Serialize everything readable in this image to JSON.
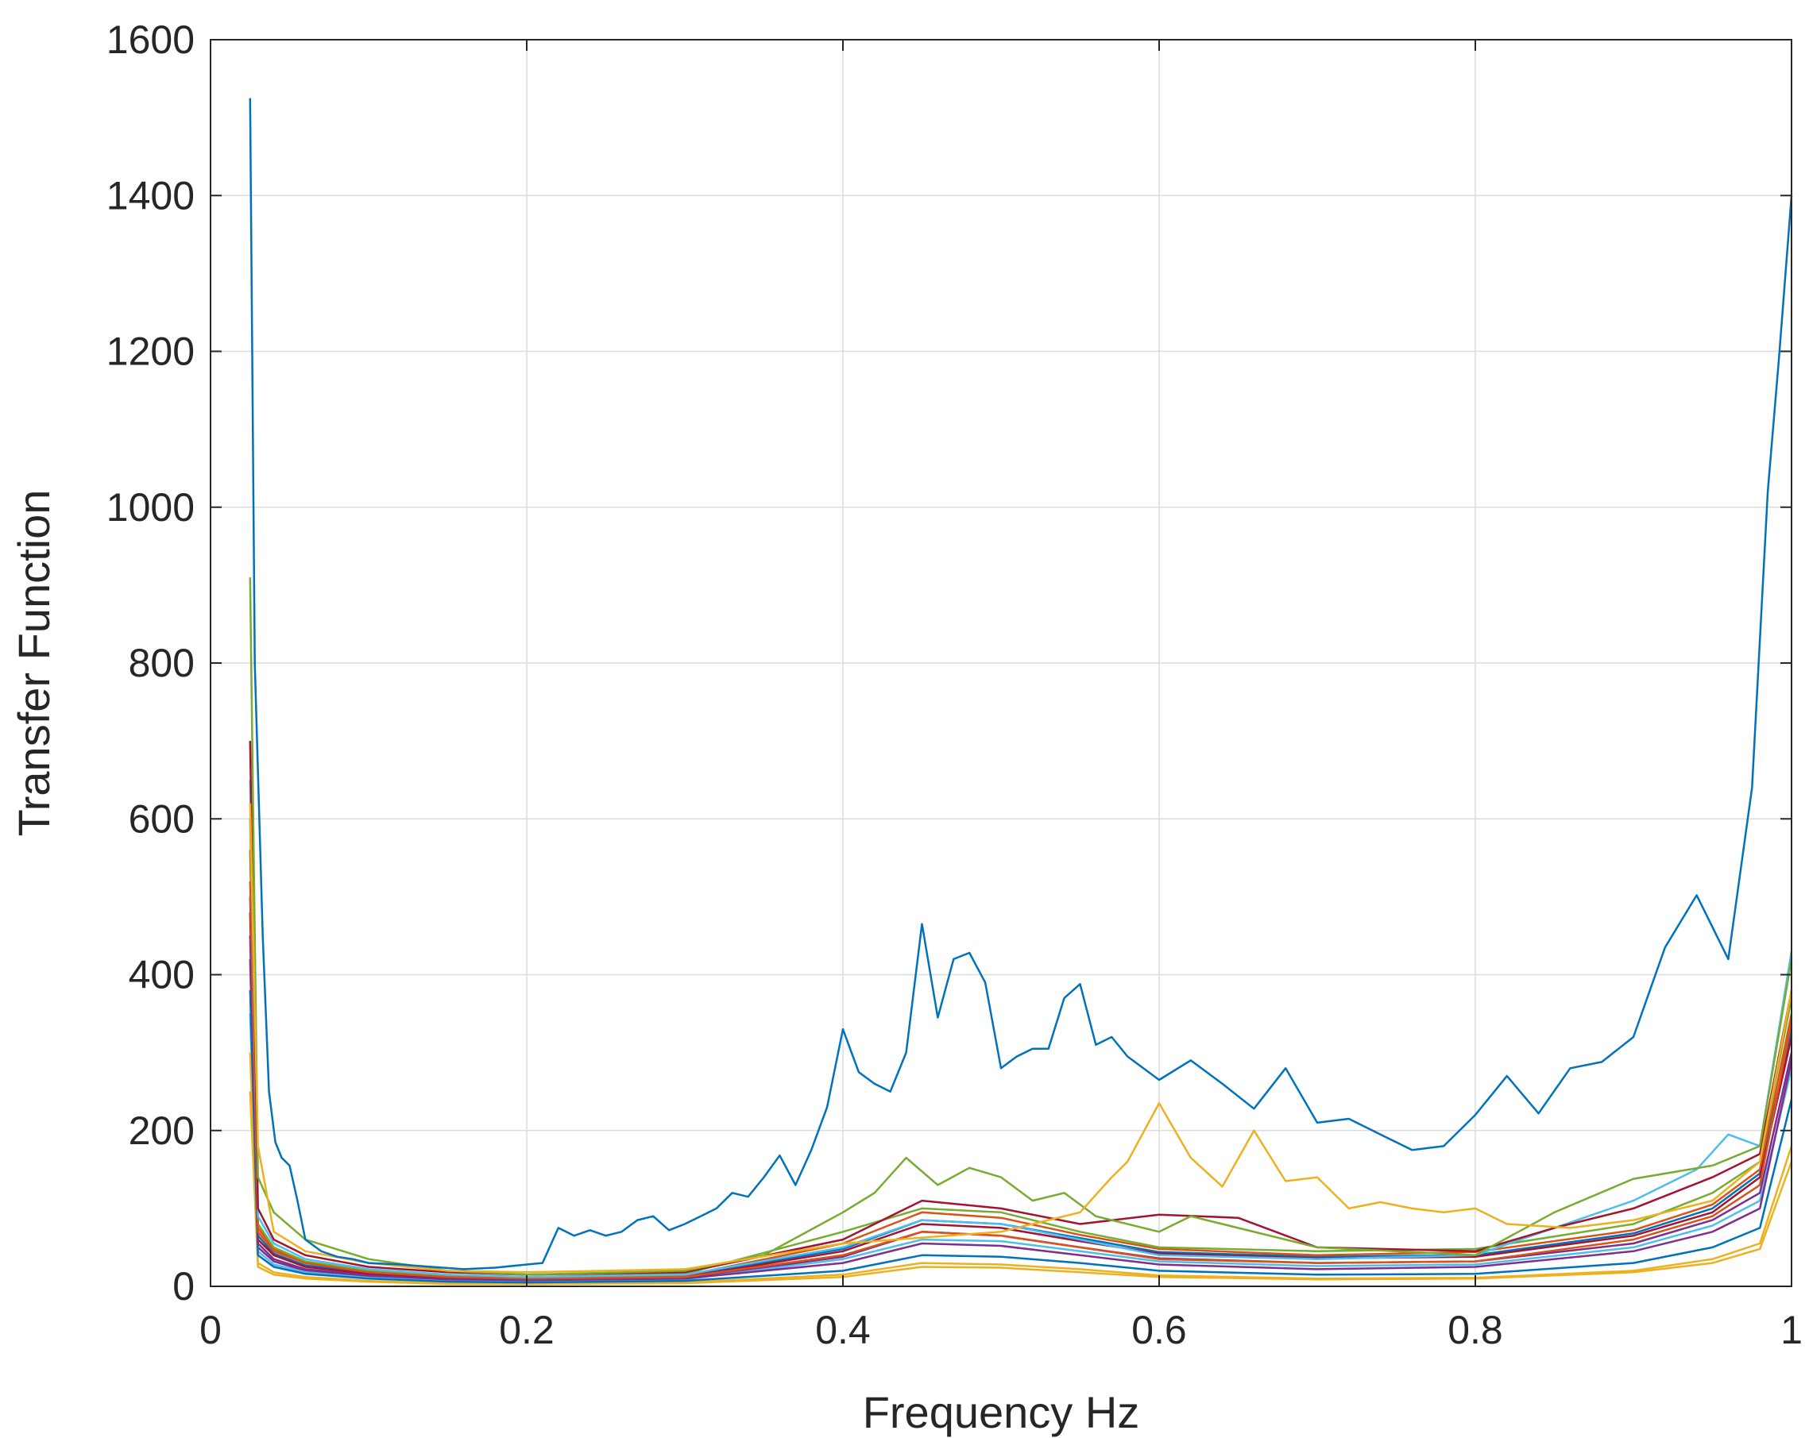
{
  "chart_data": {
    "type": "line",
    "title": "",
    "xlabel": "Frequency Hz",
    "ylabel": "Transfer Function",
    "xlim": [
      0,
      1
    ],
    "ylim": [
      0,
      1600
    ],
    "xticks": [
      0,
      0.2,
      0.4,
      0.6,
      0.8,
      1
    ],
    "xtick_labels": [
      "0",
      "0.2",
      "0.4",
      "0.6",
      "0.8",
      "1"
    ],
    "yticks": [
      0,
      200,
      400,
      600,
      800,
      1000,
      1200,
      1400,
      1600
    ],
    "ytick_labels": [
      "0",
      "200",
      "400",
      "600",
      "800",
      "1000",
      "1200",
      "1400",
      "1600"
    ],
    "grid": true,
    "legend": "none",
    "series": [
      {
        "color": "#0072BD",
        "x": [
          0.025,
          0.028,
          0.033,
          0.037,
          0.041,
          0.045,
          0.05,
          0.055,
          0.06,
          0.07,
          0.08,
          0.09,
          0.1,
          0.12,
          0.14,
          0.16,
          0.18,
          0.2,
          0.21,
          0.22,
          0.23,
          0.24,
          0.25,
          0.26,
          0.27,
          0.28,
          0.29,
          0.3,
          0.31,
          0.32,
          0.33,
          0.34,
          0.35,
          0.36,
          0.37,
          0.38,
          0.39,
          0.4,
          0.41,
          0.42,
          0.43,
          0.44,
          0.45,
          0.46,
          0.47,
          0.48,
          0.49,
          0.5,
          0.51,
          0.52,
          0.53,
          0.54,
          0.55,
          0.56,
          0.57,
          0.58,
          0.59,
          0.6,
          0.62,
          0.64,
          0.66,
          0.68,
          0.7,
          0.72,
          0.74,
          0.76,
          0.78,
          0.8,
          0.82,
          0.84,
          0.86,
          0.88,
          0.9,
          0.92,
          0.94,
          0.96,
          0.975,
          0.985,
          0.992,
          1.0
        ],
        "y": [
          1525,
          800,
          450,
          250,
          185,
          165,
          155,
          110,
          60,
          45,
          38,
          35,
          30,
          28,
          25,
          22,
          24,
          28,
          30,
          75,
          65,
          72,
          65,
          70,
          85,
          90,
          72,
          80,
          90,
          100,
          120,
          115,
          140,
          168,
          130,
          175,
          230,
          330,
          275,
          260,
          250,
          300,
          465,
          345,
          420,
          428,
          390,
          280,
          295,
          305,
          305,
          370,
          388,
          310,
          320,
          295,
          280,
          265,
          290,
          260,
          228,
          280,
          210,
          215,
          195,
          175,
          180,
          220,
          270,
          222,
          280,
          288,
          320,
          435,
          502,
          420,
          640,
          1020,
          1190,
          1400
        ]
      },
      {
        "color": "#EDB120",
        "x": [
          0.025,
          0.03,
          0.04,
          0.06,
          0.1,
          0.15,
          0.2,
          0.3,
          0.4,
          0.5,
          0.55,
          0.57,
          0.58,
          0.6,
          0.62,
          0.64,
          0.66,
          0.68,
          0.7,
          0.72,
          0.74,
          0.76,
          0.78,
          0.8,
          0.82,
          0.86,
          0.9,
          0.95,
          0.98,
          1.0
        ],
        "y": [
          620,
          180,
          70,
          45,
          30,
          20,
          18,
          22,
          55,
          70,
          95,
          140,
          160,
          235,
          165,
          128,
          200,
          135,
          140,
          100,
          108,
          100,
          95,
          100,
          80,
          75,
          85,
          110,
          160,
          380
        ]
      },
      {
        "color": "#77AC30",
        "x": [
          0.025,
          0.03,
          0.04,
          0.06,
          0.1,
          0.15,
          0.2,
          0.3,
          0.35,
          0.4,
          0.42,
          0.44,
          0.46,
          0.48,
          0.5,
          0.52,
          0.54,
          0.56,
          0.6,
          0.62,
          0.7,
          0.8,
          0.85,
          0.9,
          0.95,
          0.98,
          1.0
        ],
        "y": [
          910,
          140,
          95,
          60,
          35,
          20,
          15,
          20,
          40,
          95,
          120,
          165,
          130,
          152,
          140,
          110,
          120,
          90,
          70,
          90,
          50,
          40,
          95,
          138,
          155,
          180,
          420
        ]
      },
      {
        "color": "#A2142F",
        "x": [
          0.025,
          0.03,
          0.04,
          0.06,
          0.1,
          0.15,
          0.2,
          0.3,
          0.4,
          0.45,
          0.5,
          0.55,
          0.6,
          0.65,
          0.7,
          0.8,
          0.85,
          0.9,
          0.95,
          0.98,
          1.0
        ],
        "y": [
          700,
          100,
          60,
          40,
          25,
          18,
          15,
          18,
          60,
          110,
          100,
          80,
          92,
          88,
          50,
          45,
          75,
          100,
          140,
          170,
          380
        ]
      },
      {
        "color": "#4DBEEE",
        "x": [
          0.025,
          0.03,
          0.04,
          0.06,
          0.1,
          0.15,
          0.2,
          0.3,
          0.4,
          0.45,
          0.5,
          0.55,
          0.6,
          0.7,
          0.8,
          0.9,
          0.94,
          0.96,
          0.98,
          1.0
        ],
        "y": [
          650,
          90,
          55,
          35,
          22,
          15,
          12,
          15,
          50,
          85,
          80,
          60,
          40,
          35,
          40,
          110,
          150,
          195,
          180,
          430
        ]
      },
      {
        "color": "#D95319",
        "x": [
          0.025,
          0.03,
          0.04,
          0.06,
          0.1,
          0.15,
          0.2,
          0.3,
          0.4,
          0.45,
          0.5,
          0.55,
          0.6,
          0.7,
          0.8,
          0.9,
          0.95,
          0.98,
          1.0
        ],
        "y": [
          520,
          70,
          45,
          30,
          18,
          12,
          10,
          12,
          40,
          70,
          65,
          50,
          35,
          30,
          32,
          60,
          90,
          130,
          340
        ]
      },
      {
        "color": "#7E2F8E",
        "x": [
          0.025,
          0.03,
          0.04,
          0.06,
          0.1,
          0.15,
          0.2,
          0.3,
          0.4,
          0.45,
          0.5,
          0.55,
          0.6,
          0.7,
          0.8,
          0.9,
          0.95,
          0.98,
          1.0
        ],
        "y": [
          450,
          55,
          35,
          22,
          14,
          9,
          8,
          10,
          30,
          55,
          52,
          40,
          28,
          22,
          25,
          45,
          70,
          100,
          290
        ]
      },
      {
        "color": "#0072BD",
        "x": [
          0.025,
          0.03,
          0.04,
          0.06,
          0.1,
          0.15,
          0.2,
          0.3,
          0.4,
          0.45,
          0.5,
          0.55,
          0.6,
          0.7,
          0.8,
          0.9,
          0.95,
          0.98,
          1.0
        ],
        "y": [
          380,
          40,
          25,
          16,
          10,
          6,
          5,
          7,
          20,
          40,
          38,
          30,
          20,
          15,
          16,
          30,
          50,
          75,
          240
        ]
      },
      {
        "color": "#EDB120",
        "x": [
          0.025,
          0.03,
          0.04,
          0.06,
          0.1,
          0.15,
          0.2,
          0.3,
          0.4,
          0.45,
          0.5,
          0.55,
          0.6,
          0.7,
          0.8,
          0.9,
          0.95,
          0.98,
          1.0
        ],
        "y": [
          300,
          30,
          18,
          12,
          7,
          4,
          3,
          5,
          15,
          30,
          28,
          22,
          14,
          10,
          11,
          20,
          35,
          55,
          180
        ]
      },
      {
        "color": "#77AC30",
        "x": [
          0.025,
          0.03,
          0.04,
          0.06,
          0.1,
          0.15,
          0.2,
          0.3,
          0.4,
          0.45,
          0.5,
          0.55,
          0.6,
          0.7,
          0.8,
          0.9,
          0.95,
          0.98,
          1.0
        ],
        "y": [
          600,
          80,
          50,
          32,
          20,
          14,
          12,
          16,
          70,
          100,
          95,
          70,
          50,
          45,
          48,
          80,
          120,
          160,
          370
        ]
      },
      {
        "color": "#A2142F",
        "x": [
          0.025,
          0.03,
          0.04,
          0.06,
          0.1,
          0.15,
          0.2,
          0.3,
          0.4,
          0.45,
          0.5,
          0.55,
          0.6,
          0.7,
          0.8,
          0.9,
          0.95,
          0.98,
          1.0
        ],
        "y": [
          480,
          60,
          40,
          25,
          16,
          10,
          9,
          12,
          45,
          80,
          75,
          58,
          42,
          36,
          38,
          65,
          95,
          140,
          320
        ]
      },
      {
        "color": "#4DBEEE",
        "x": [
          0.025,
          0.03,
          0.04,
          0.06,
          0.1,
          0.15,
          0.2,
          0.3,
          0.4,
          0.45,
          0.5,
          0.55,
          0.6,
          0.7,
          0.8,
          0.9,
          0.95,
          0.98,
          1.0
        ],
        "y": [
          350,
          45,
          28,
          18,
          11,
          7,
          6,
          9,
          35,
          60,
          58,
          45,
          32,
          26,
          28,
          50,
          78,
          110,
          280
        ]
      },
      {
        "color": "#D95319",
        "x": [
          0.025,
          0.03,
          0.04,
          0.06,
          0.1,
          0.15,
          0.2,
          0.3,
          0.4,
          0.45,
          0.5,
          0.55,
          0.6,
          0.7,
          0.8,
          0.9,
          0.95,
          0.98,
          1.0
        ],
        "y": [
          560,
          75,
          48,
          30,
          19,
          13,
          11,
          14,
          55,
          95,
          88,
          66,
          48,
          40,
          44,
          72,
          105,
          150,
          350
        ]
      },
      {
        "color": "#7E2F8E",
        "x": [
          0.025,
          0.03,
          0.04,
          0.06,
          0.1,
          0.15,
          0.2,
          0.3,
          0.4,
          0.45,
          0.5,
          0.55,
          0.6,
          0.7,
          0.8,
          0.9,
          0.95,
          0.98,
          1.0
        ],
        "y": [
          420,
          50,
          32,
          20,
          12,
          8,
          7,
          10,
          38,
          70,
          65,
          50,
          36,
          30,
          32,
          55,
          85,
          120,
          300
        ]
      },
      {
        "color": "#0072BD",
        "x": [
          0.025,
          0.03,
          0.04,
          0.06,
          0.1,
          0.15,
          0.2,
          0.3,
          0.4,
          0.45,
          0.5,
          0.55,
          0.6,
          0.7,
          0.8,
          0.9,
          0.95,
          0.98,
          1.0
        ],
        "y": [
          500,
          65,
          42,
          27,
          17,
          11,
          10,
          13,
          48,
          85,
          80,
          62,
          44,
          38,
          40,
          68,
          100,
          145,
          330
        ]
      },
      {
        "color": "#EDB120",
        "x": [
          0.025,
          0.03,
          0.04,
          0.06,
          0.1,
          0.15,
          0.2,
          0.3,
          0.4,
          0.45,
          0.5,
          0.55,
          0.6,
          0.7,
          0.8,
          0.9,
          0.95,
          0.98,
          1.0
        ],
        "y": [
          250,
          25,
          15,
          10,
          6,
          3,
          3,
          4,
          12,
          25,
          24,
          18,
          12,
          9,
          10,
          18,
          30,
          48,
          160
        ]
      }
    ]
  }
}
